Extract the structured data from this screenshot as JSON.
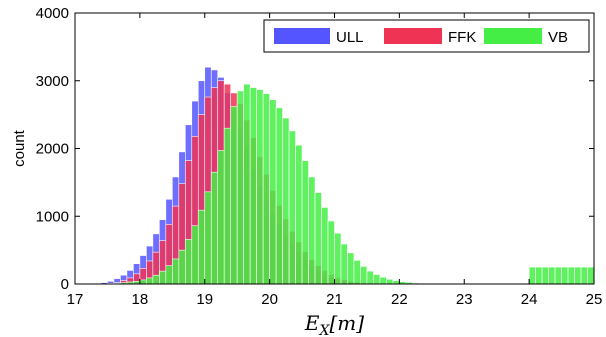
{
  "chart_data": {
    "type": "bar",
    "subtype": "overlapping-histogram",
    "title": "",
    "xlabel": "E_X[m]",
    "ylabel": "count",
    "xlim": [
      17,
      25
    ],
    "ylim": [
      0,
      4000
    ],
    "xticks": [
      17,
      18,
      19,
      20,
      21,
      22,
      23,
      24,
      25
    ],
    "yticks": [
      0,
      1000,
      2000,
      3000,
      4000
    ],
    "legend": {
      "placement": "top-right",
      "entries": [
        "ULL",
        "FFK",
        "VB"
      ]
    },
    "colors": {
      "ULL": "#5555ff",
      "FFK": "#ee3355",
      "VB": "#44ee44",
      "FFK_VB_overlap": "#339933",
      "ULL_FFK_overlap": "#aa1155"
    },
    "bin_width": 0.1,
    "series": [
      {
        "name": "ULL",
        "color": "#5555ff",
        "bin_starts": [
          17.3,
          17.4,
          17.5,
          17.6,
          17.7,
          17.8,
          17.9,
          18.0,
          18.1,
          18.2,
          18.3,
          18.4,
          18.5,
          18.6,
          18.7,
          18.8,
          18.9,
          19.0,
          19.1,
          19.2,
          19.3,
          19.4,
          19.5,
          19.6,
          19.7,
          19.8,
          19.9,
          20.0,
          20.1,
          20.2,
          20.3,
          20.4,
          20.5,
          20.6,
          20.7,
          20.8,
          20.9,
          21.0,
          21.1,
          21.2,
          21.3,
          21.4,
          21.5,
          21.6,
          21.7
        ],
        "values": [
          10,
          20,
          40,
          80,
          130,
          200,
          300,
          420,
          560,
          740,
          950,
          1250,
          1580,
          1950,
          2350,
          2700,
          3000,
          3200,
          3160,
          3050,
          2820,
          2560,
          2300,
          2000,
          1700,
          1450,
          1250,
          1050,
          880,
          730,
          590,
          470,
          360,
          270,
          200,
          140,
          100,
          70,
          45,
          30,
          20,
          12,
          8,
          5,
          3
        ]
      },
      {
        "name": "FFK",
        "color": "#ee3355",
        "bin_starts": [
          17.5,
          17.6,
          17.7,
          17.8,
          17.9,
          18.0,
          18.1,
          18.2,
          18.3,
          18.4,
          18.5,
          18.6,
          18.7,
          18.8,
          18.9,
          19.0,
          19.1,
          19.2,
          19.3,
          19.4,
          19.5,
          19.6,
          19.7,
          19.8,
          19.9,
          20.0,
          20.1,
          20.2,
          20.3,
          20.4,
          20.5,
          20.6,
          20.7,
          20.8,
          20.9,
          21.0,
          21.1,
          21.2,
          21.3,
          21.4,
          21.5,
          21.6,
          21.7,
          21.8
        ],
        "values": [
          10,
          20,
          50,
          90,
          150,
          230,
          340,
          470,
          640,
          880,
          1150,
          1480,
          1820,
          2180,
          2500,
          2760,
          2900,
          3000,
          2950,
          2820,
          2660,
          2420,
          2160,
          1880,
          1620,
          1380,
          1160,
          960,
          780,
          620,
          480,
          360,
          270,
          200,
          140,
          95,
          65,
          40,
          25,
          15,
          10,
          6,
          4,
          2
        ]
      },
      {
        "name": "VB",
        "color": "#44ee44",
        "bin_starts": [
          17.6,
          17.7,
          17.8,
          17.9,
          18.0,
          18.1,
          18.2,
          18.3,
          18.4,
          18.5,
          18.6,
          18.7,
          18.8,
          18.9,
          19.0,
          19.1,
          19.2,
          19.3,
          19.4,
          19.5,
          19.6,
          19.7,
          19.8,
          19.9,
          20.0,
          20.1,
          20.2,
          20.3,
          20.4,
          20.5,
          20.6,
          20.7,
          20.8,
          20.9,
          21.0,
          21.1,
          21.2,
          21.3,
          21.4,
          21.5,
          21.6,
          21.7,
          21.8,
          21.9,
          22.0,
          22.1,
          22.2,
          22.3,
          22.4,
          22.5,
          24.0,
          24.1,
          24.2,
          24.3,
          24.4,
          24.5,
          24.6,
          24.7,
          24.8,
          24.9
        ],
        "values": [
          10,
          20,
          30,
          40,
          60,
          90,
          130,
          190,
          270,
          370,
          500,
          660,
          860,
          1090,
          1360,
          1650,
          1970,
          2300,
          2620,
          2850,
          2950,
          2900,
          2870,
          2810,
          2720,
          2600,
          2450,
          2260,
          2050,
          1820,
          1580,
          1350,
          1130,
          930,
          750,
          590,
          460,
          350,
          260,
          190,
          140,
          100,
          70,
          50,
          35,
          25,
          15,
          10,
          5,
          3,
          250,
          250,
          250,
          250,
          250,
          250,
          250,
          250,
          250,
          250
        ]
      }
    ]
  }
}
